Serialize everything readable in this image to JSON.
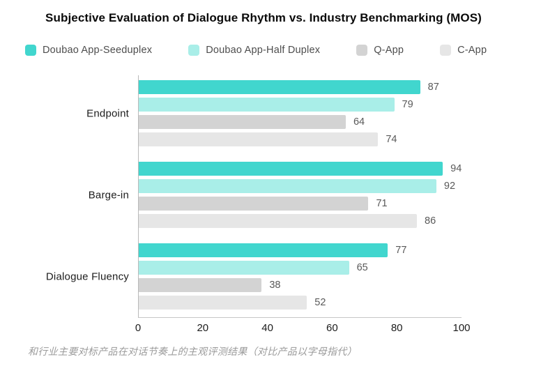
{
  "title": "Subjective Evaluation of Dialogue Rhythm vs. Industry Benchmarking (MOS)",
  "footer": "和行业主要对标产品在对话节奏上的主观评测结果（对比产品以字母指代）",
  "colors": {
    "series_1": "#41d6ce",
    "series_2": "#a9eee8",
    "series_3": "#d3d3d3",
    "series_4": "#e6e6e6",
    "axis_line": "#c6c6c6",
    "value_label": "#595959",
    "tick_label": "#1c1c1c",
    "legend_label": "#4d4d4d",
    "footer_text": "#9b9b9b",
    "title_text": "#0a0a0a"
  },
  "chart_data": {
    "type": "bar",
    "orientation": "horizontal",
    "title": "Subjective Evaluation of Dialogue Rhythm vs. Industry Benchmarking (MOS)",
    "categories": [
      "Endpoint",
      "Barge-in",
      "Dialogue Fluency"
    ],
    "series": [
      {
        "name": "Doubao App-Seeduplex",
        "color": "#41d6ce",
        "values": [
          87,
          94,
          77
        ]
      },
      {
        "name": "Doubao App-Half Duplex",
        "color": "#a9eee8",
        "values": [
          79,
          92,
          65
        ]
      },
      {
        "name": "Q-App",
        "color": "#d3d3d3",
        "values": [
          64,
          71,
          38
        ]
      },
      {
        "name": "C-App",
        "color": "#e6e6e6",
        "values": [
          74,
          86,
          52
        ]
      }
    ],
    "xlabel": "",
    "ylabel": "",
    "xlim": [
      0,
      100
    ],
    "x_ticks": [
      0,
      20,
      40,
      60,
      80,
      100
    ],
    "grid": false,
    "legend_position": "top",
    "data_labels": true,
    "annotation": "和行业主要对标产品在对话节奏上的主观评测结果（对比产品以字母指代）"
  }
}
